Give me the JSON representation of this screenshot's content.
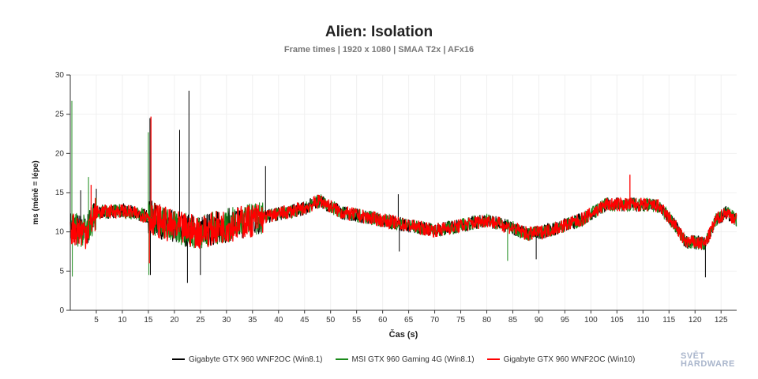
{
  "chart_data": {
    "type": "line",
    "title": "Alien: Isolation",
    "subtitle": "Frame times | 1920 x 1080 | SMAA T2x | AFx16",
    "xlabel": "Čas (s)",
    "ylabel": "ms (méně = lépe)",
    "xlim": [
      0,
      128
    ],
    "ylim": [
      0,
      30
    ],
    "xticks": [
      5,
      10,
      15,
      20,
      25,
      30,
      35,
      40,
      45,
      50,
      55,
      60,
      65,
      70,
      75,
      80,
      85,
      90,
      95,
      100,
      105,
      110,
      115,
      120,
      125
    ],
    "yticks": [
      0,
      5,
      10,
      15,
      20,
      25,
      30
    ],
    "grid": true,
    "legend_position": "bottom",
    "trend": [
      [
        0,
        10.5
      ],
      [
        3,
        10
      ],
      [
        5,
        12.5
      ],
      [
        10,
        12.7
      ],
      [
        15,
        12
      ],
      [
        20,
        10.5
      ],
      [
        25,
        10
      ],
      [
        30,
        10.8
      ],
      [
        35,
        11.5
      ],
      [
        40,
        12.3
      ],
      [
        45,
        13
      ],
      [
        48,
        14
      ],
      [
        52,
        12.5
      ],
      [
        60,
        11.5
      ],
      [
        65,
        10.8
      ],
      [
        70,
        10.2
      ],
      [
        75,
        10.8
      ],
      [
        80,
        11.5
      ],
      [
        85,
        10.5
      ],
      [
        88,
        9.7
      ],
      [
        92,
        10.2
      ],
      [
        98,
        11.5
      ],
      [
        103,
        13.5
      ],
      [
        108,
        13.5
      ],
      [
        113,
        13.3
      ],
      [
        116,
        11
      ],
      [
        118,
        8.8
      ],
      [
        122,
        8.5
      ],
      [
        124,
        11.5
      ],
      [
        126,
        12.5
      ],
      [
        128,
        11.5
      ]
    ],
    "series": [
      {
        "name": "Gigabyte GTX 960 WNF2OC (Win8.1)",
        "color": "#000000",
        "spikes": [
          [
            15.3,
            24.5
          ],
          [
            15.4,
            4.5
          ],
          [
            21,
            23
          ],
          [
            22.8,
            28
          ],
          [
            22.5,
            3.5
          ],
          [
            25,
            4.5
          ],
          [
            37.5,
            18.4
          ],
          [
            63,
            14.8
          ],
          [
            63.2,
            7.5
          ],
          [
            89.5,
            6.5
          ],
          [
            122,
            4.2
          ],
          [
            5,
            15.5
          ],
          [
            2,
            15.3
          ]
        ]
      },
      {
        "name": "MSI GTX 960 Gaming 4G (Win8.1)",
        "color": "#1a8a1a",
        "spikes": [
          [
            0.3,
            26.7
          ],
          [
            0.4,
            4.3
          ],
          [
            15,
            22.7
          ],
          [
            15.1,
            4.5
          ],
          [
            3.5,
            17
          ],
          [
            84,
            6.3
          ]
        ]
      },
      {
        "name": "Gigabyte GTX 960 WNF2OC (Win10)",
        "color": "#ff0000",
        "spikes": [
          [
            15.5,
            24.7
          ],
          [
            15.2,
            6
          ],
          [
            107.5,
            17.3
          ],
          [
            4,
            16
          ]
        ]
      }
    ]
  },
  "logo": {
    "line1": "SVĚT",
    "line2": "HARDWARE"
  }
}
